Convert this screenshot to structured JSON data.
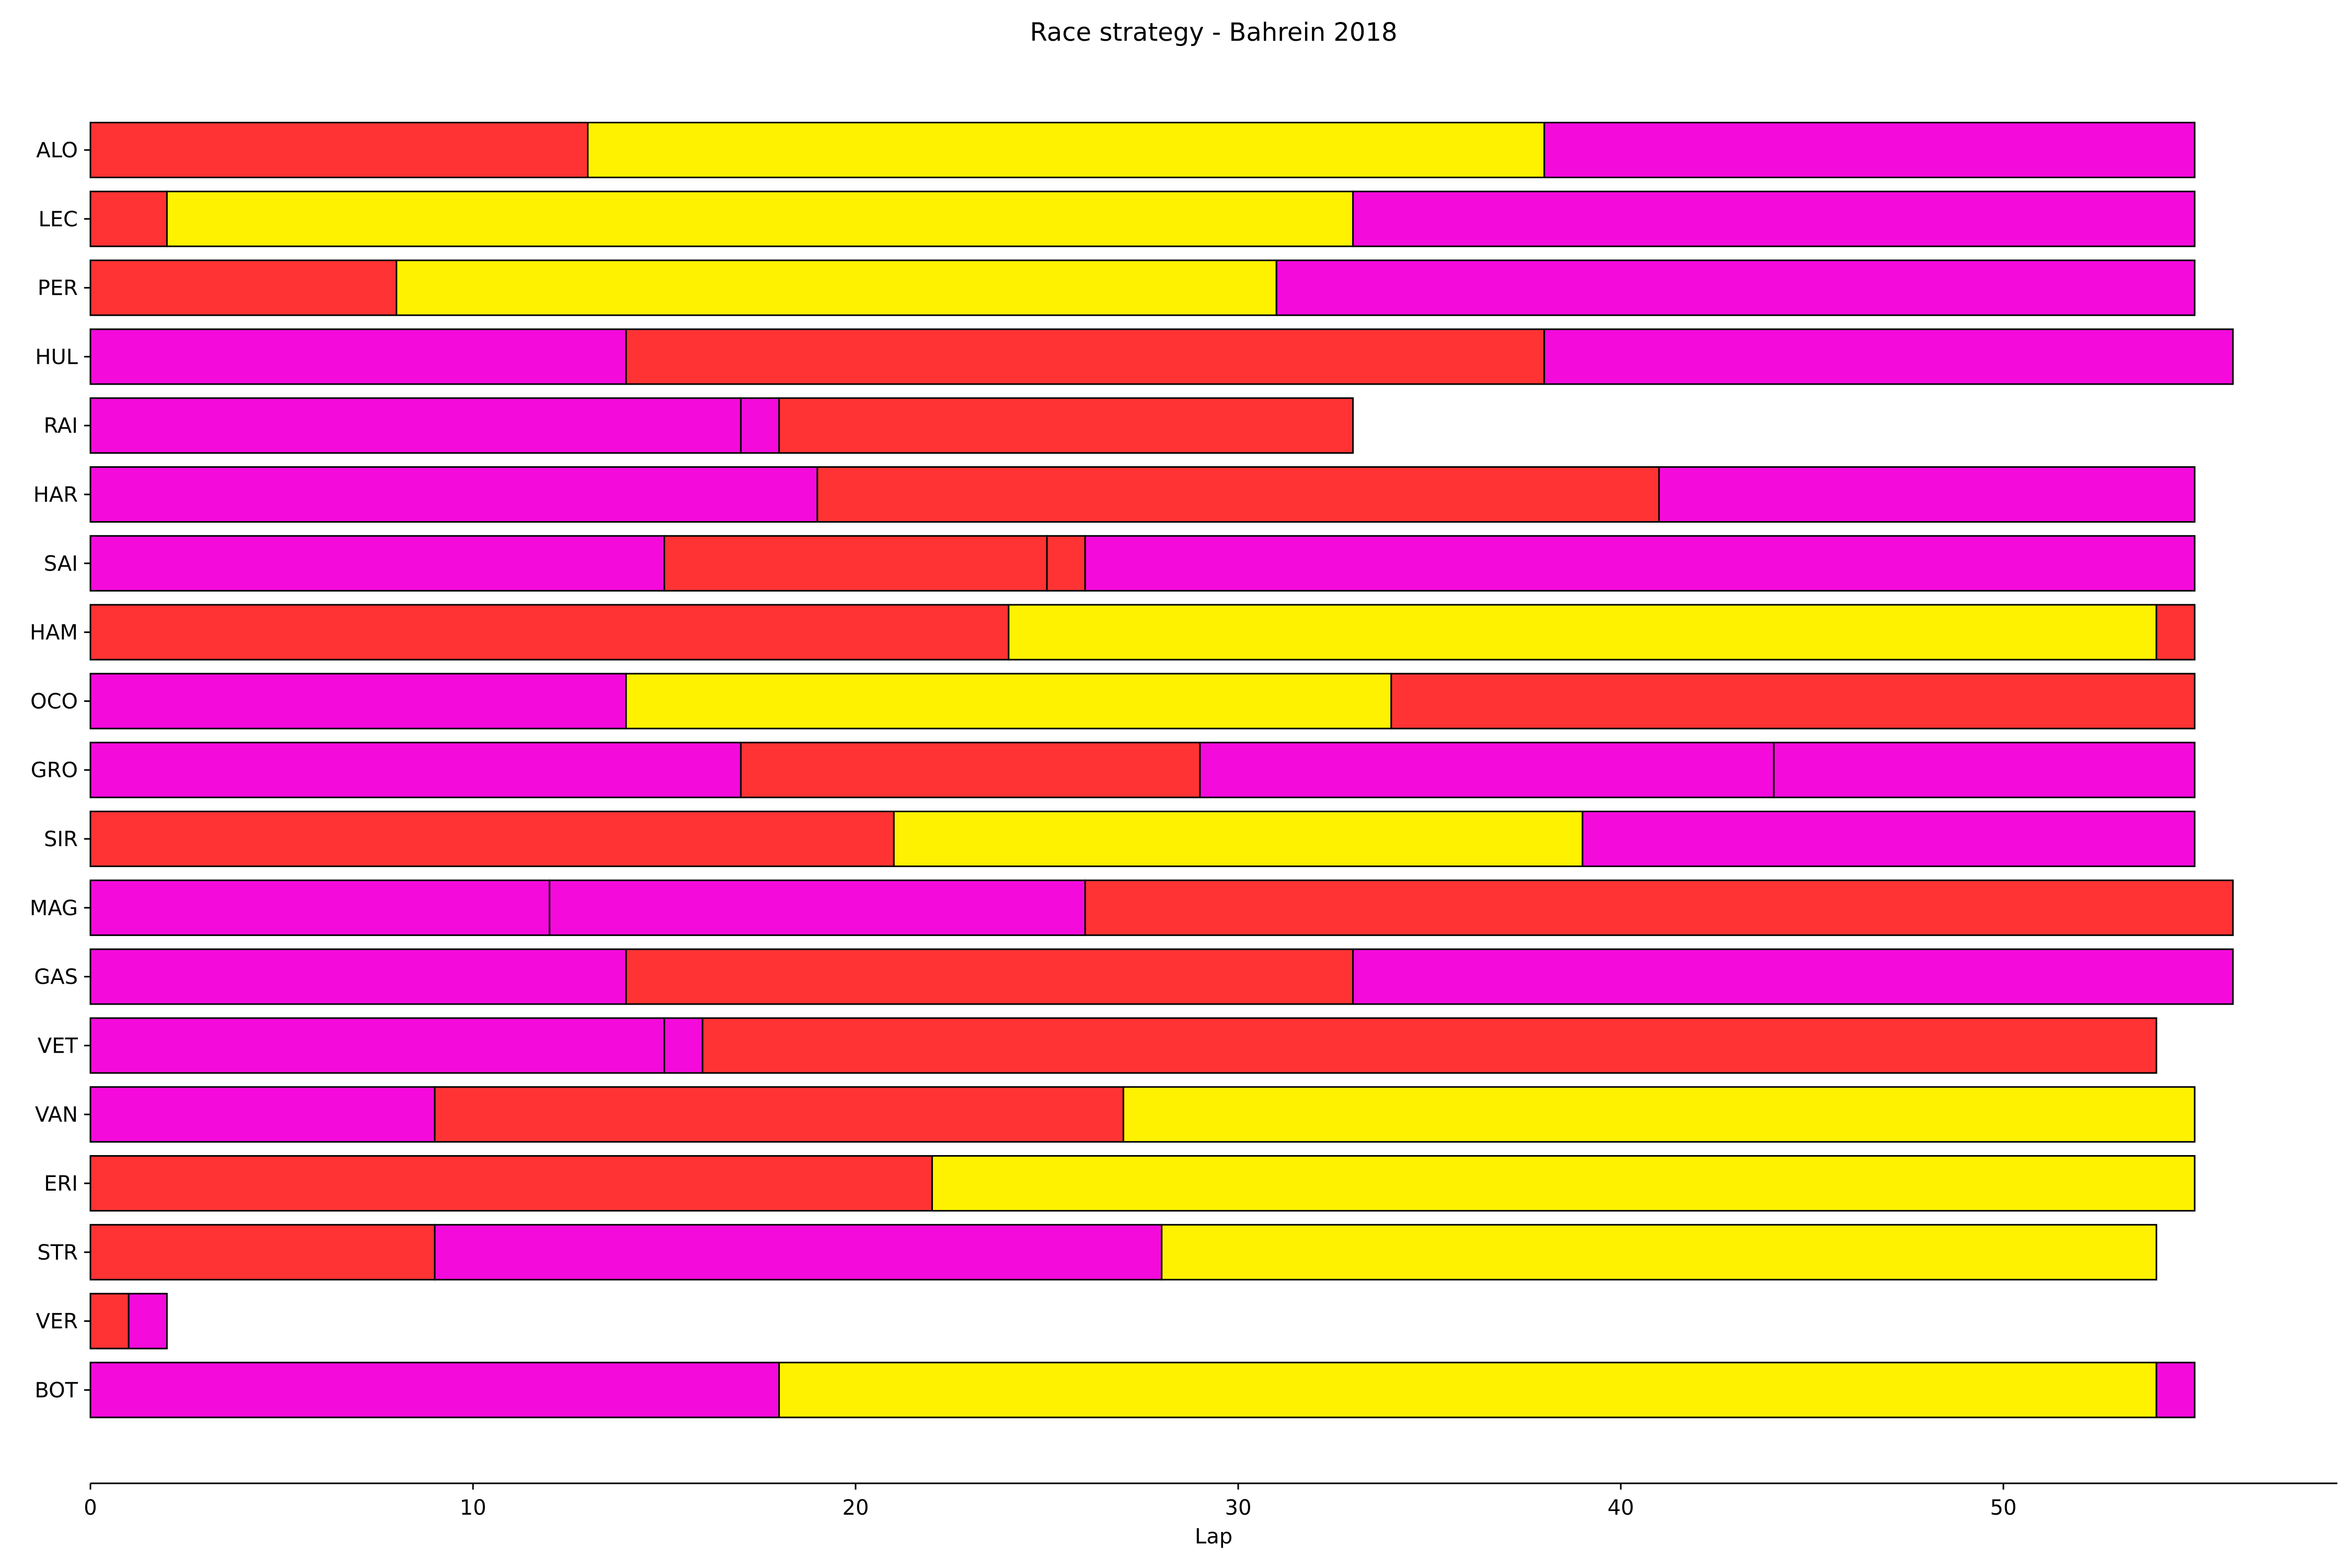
{
  "chart_data": {
    "type": "bar",
    "orientation": "horizontal-stacked",
    "title": "Race strategy - Bahrein 2018",
    "xlabel": "Lap",
    "ylabel": "",
    "xlim": [
      0,
      58.8
    ],
    "xticks": [
      0,
      10,
      20,
      30,
      40,
      50
    ],
    "grid": false,
    "legend": "none",
    "compound_colors": {
      "supersoft": "#ff3333",
      "soft": "#fff200",
      "ultrasoft": "#f50adc"
    },
    "drivers": [
      {
        "driver": "ALO",
        "stints": [
          {
            "compound": "supersoft",
            "start": 0,
            "end": 13
          },
          {
            "compound": "soft",
            "start": 13,
            "end": 38
          },
          {
            "compound": "ultrasoft",
            "start": 38,
            "end": 55
          }
        ]
      },
      {
        "driver": "LEC",
        "stints": [
          {
            "compound": "supersoft",
            "start": 0,
            "end": 2
          },
          {
            "compound": "soft",
            "start": 2,
            "end": 33
          },
          {
            "compound": "ultrasoft",
            "start": 33,
            "end": 55
          }
        ]
      },
      {
        "driver": "PER",
        "stints": [
          {
            "compound": "supersoft",
            "start": 0,
            "end": 8
          },
          {
            "compound": "soft",
            "start": 8,
            "end": 31
          },
          {
            "compound": "ultrasoft",
            "start": 31,
            "end": 55
          }
        ]
      },
      {
        "driver": "HUL",
        "stints": [
          {
            "compound": "ultrasoft",
            "start": 0,
            "end": 14
          },
          {
            "compound": "supersoft",
            "start": 14,
            "end": 38
          },
          {
            "compound": "ultrasoft",
            "start": 38,
            "end": 56
          }
        ]
      },
      {
        "driver": "RAI",
        "stints": [
          {
            "compound": "ultrasoft",
            "start": 0,
            "end": 17
          },
          {
            "compound": "ultrasoft",
            "start": 17,
            "end": 18
          },
          {
            "compound": "supersoft",
            "start": 18,
            "end": 33
          }
        ]
      },
      {
        "driver": "HAR",
        "stints": [
          {
            "compound": "ultrasoft",
            "start": 0,
            "end": 19
          },
          {
            "compound": "supersoft",
            "start": 19,
            "end": 41
          },
          {
            "compound": "ultrasoft",
            "start": 41,
            "end": 55
          }
        ]
      },
      {
        "driver": "SAI",
        "stints": [
          {
            "compound": "ultrasoft",
            "start": 0,
            "end": 15
          },
          {
            "compound": "supersoft",
            "start": 15,
            "end": 25
          },
          {
            "compound": "supersoft",
            "start": 25,
            "end": 26
          },
          {
            "compound": "ultrasoft",
            "start": 26,
            "end": 55
          }
        ]
      },
      {
        "driver": "HAM",
        "stints": [
          {
            "compound": "supersoft",
            "start": 0,
            "end": 24
          },
          {
            "compound": "soft",
            "start": 24,
            "end": 54
          },
          {
            "compound": "supersoft",
            "start": 54,
            "end": 55
          }
        ]
      },
      {
        "driver": "OCO",
        "stints": [
          {
            "compound": "ultrasoft",
            "start": 0,
            "end": 14
          },
          {
            "compound": "soft",
            "start": 14,
            "end": 34
          },
          {
            "compound": "supersoft",
            "start": 34,
            "end": 55
          }
        ]
      },
      {
        "driver": "GRO",
        "stints": [
          {
            "compound": "ultrasoft",
            "start": 0,
            "end": 17
          },
          {
            "compound": "supersoft",
            "start": 17,
            "end": 29
          },
          {
            "compound": "ultrasoft",
            "start": 29,
            "end": 44
          },
          {
            "compound": "ultrasoft",
            "start": 44,
            "end": 55
          }
        ]
      },
      {
        "driver": "SIR",
        "stints": [
          {
            "compound": "supersoft",
            "start": 0,
            "end": 21
          },
          {
            "compound": "soft",
            "start": 21,
            "end": 39
          },
          {
            "compound": "ultrasoft",
            "start": 39,
            "end": 55
          }
        ]
      },
      {
        "driver": "MAG",
        "stints": [
          {
            "compound": "ultrasoft",
            "start": 0,
            "end": 12
          },
          {
            "compound": "ultrasoft",
            "start": 12,
            "end": 26
          },
          {
            "compound": "supersoft",
            "start": 26,
            "end": 56
          }
        ]
      },
      {
        "driver": "GAS",
        "stints": [
          {
            "compound": "ultrasoft",
            "start": 0,
            "end": 14
          },
          {
            "compound": "supersoft",
            "start": 14,
            "end": 33
          },
          {
            "compound": "ultrasoft",
            "start": 33,
            "end": 56
          }
        ]
      },
      {
        "driver": "VET",
        "stints": [
          {
            "compound": "ultrasoft",
            "start": 0,
            "end": 15
          },
          {
            "compound": "ultrasoft",
            "start": 15,
            "end": 16
          },
          {
            "compound": "supersoft",
            "start": 16,
            "end": 54
          }
        ]
      },
      {
        "driver": "VAN",
        "stints": [
          {
            "compound": "ultrasoft",
            "start": 0,
            "end": 9
          },
          {
            "compound": "supersoft",
            "start": 9,
            "end": 27
          },
          {
            "compound": "soft",
            "start": 27,
            "end": 55
          }
        ]
      },
      {
        "driver": "ERI",
        "stints": [
          {
            "compound": "supersoft",
            "start": 0,
            "end": 22
          },
          {
            "compound": "soft",
            "start": 22,
            "end": 55
          }
        ]
      },
      {
        "driver": "STR",
        "stints": [
          {
            "compound": "supersoft",
            "start": 0,
            "end": 9
          },
          {
            "compound": "ultrasoft",
            "start": 9,
            "end": 28
          },
          {
            "compound": "soft",
            "start": 28,
            "end": 54
          }
        ]
      },
      {
        "driver": "VER",
        "stints": [
          {
            "compound": "supersoft",
            "start": 0,
            "end": 1
          },
          {
            "compound": "ultrasoft",
            "start": 1,
            "end": 2
          }
        ]
      },
      {
        "driver": "BOT",
        "stints": [
          {
            "compound": "ultrasoft",
            "start": 0,
            "end": 18
          },
          {
            "compound": "soft",
            "start": 18,
            "end": 54
          },
          {
            "compound": "ultrasoft",
            "start": 54,
            "end": 55
          }
        ]
      }
    ]
  }
}
